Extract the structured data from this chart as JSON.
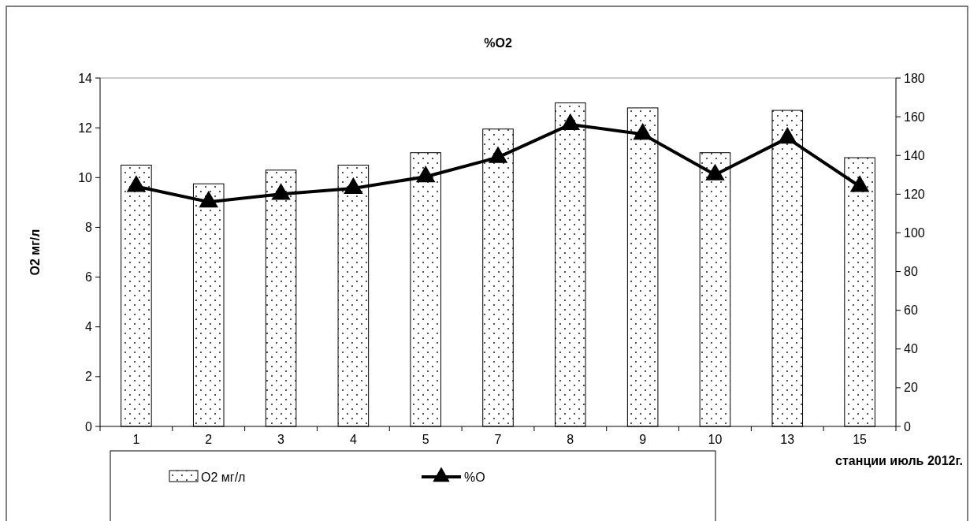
{
  "chart_data": {
    "type": "bar",
    "title": "%O2",
    "xlabel": "станции июль 2012г.",
    "ylabel": "O2 мг/л",
    "categories": [
      "1",
      "2",
      "3",
      "4",
      "5",
      "7",
      "8",
      "9",
      "10",
      "13",
      "15"
    ],
    "series": [
      {
        "name": "O2 мг/л",
        "color": "#000000",
        "values": [
          10.5,
          9.75,
          10.3,
          10.5,
          11.0,
          11.95,
          13.0,
          12.8,
          11.0,
          12.7,
          10.8
        ]
      },
      {
        "name": "%O",
        "type": "line",
        "axis": "y2",
        "color": "#000000",
        "values": [
          124,
          116,
          120,
          123,
          129,
          139,
          156,
          151,
          130,
          149,
          124
        ]
      }
    ],
    "ylim": [
      0,
      14
    ],
    "yticks": [
      0,
      2,
      4,
      6,
      8,
      10,
      12,
      14
    ],
    "y2lim": [
      0,
      180
    ],
    "y2ticks": [
      0,
      20,
      40,
      60,
      80,
      100,
      120,
      140,
      160,
      180
    ],
    "grid": false,
    "legend": "bottom",
    "marker": "triangle",
    "line_style": "solid"
  }
}
